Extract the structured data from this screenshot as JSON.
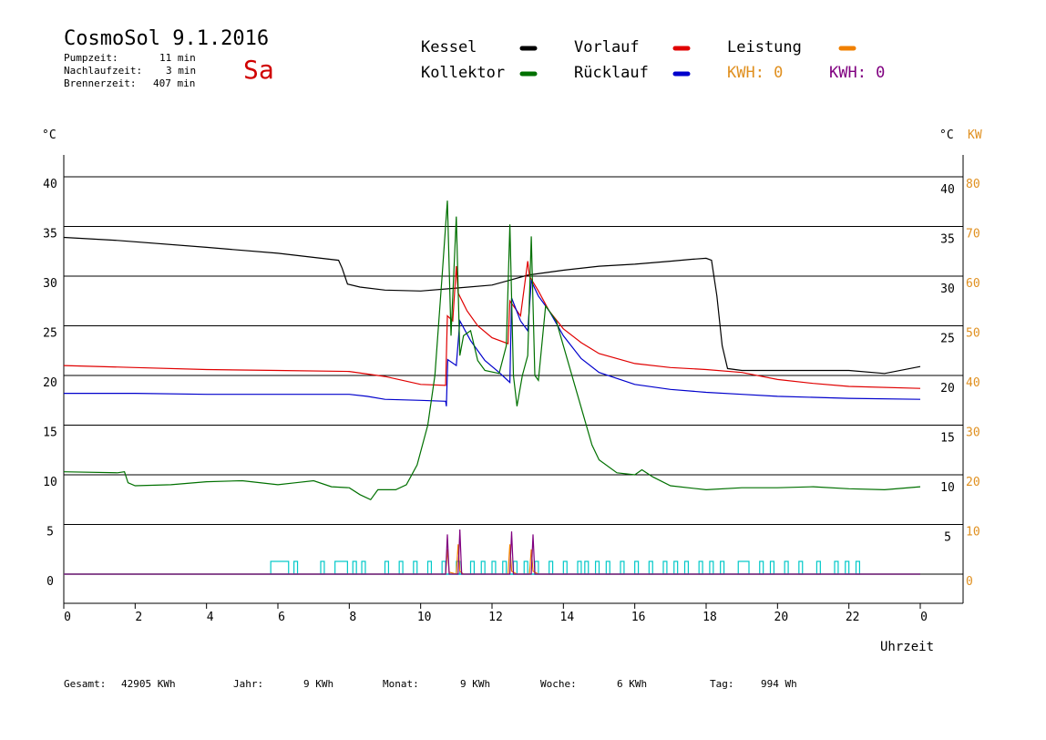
{
  "header": {
    "title": "CosmoSol 9.1.2016",
    "day": "Sa",
    "info": [
      {
        "label": "Pumpzeit:",
        "value": "11 min"
      },
      {
        "label": "Nachlaufzeit:",
        "value": "3 min"
      },
      {
        "label": "Brennerzeit:",
        "value": "407 min"
      }
    ]
  },
  "legend": {
    "kessel": "Kessel",
    "vorlauf": "Vorlauf",
    "leistung": "Leistung",
    "kollektor": "Kollektor",
    "ruecklauf": "Rücklauf",
    "kwh1": "KWH: 0",
    "kwh2": "KWH: 0"
  },
  "footer": {
    "gesamt_label": "Gesamt:",
    "gesamt_value": "42905 KWh",
    "jahr_label": "Jahr:",
    "jahr_value": "9 KWh",
    "monat_label": "Monat:",
    "monat_value": "9 KWh",
    "woche_label": "Woche:",
    "woche_value": "6 KWh",
    "tag_label": "Tag:",
    "tag_value": "994 Wh"
  },
  "colors": {
    "kessel": "#000000",
    "vorlauf": "#e00000",
    "ruecklauf": "#0000cc",
    "kollektor": "#007000",
    "leistung": "#f08000",
    "kwh2": "#800080",
    "pump": "#00c8c8",
    "axis_right_kw": "#e09020"
  },
  "chart_data": {
    "type": "line",
    "xlabel": "Uhrzeit",
    "y_unit_left": "°C",
    "y_unit_right": "°C",
    "y2_unit": "KW",
    "x_ticks": [
      "0",
      "2",
      "4",
      "6",
      "8",
      "10",
      "12",
      "14",
      "16",
      "18",
      "20",
      "22",
      "0"
    ],
    "y_ticks_left": [
      "0",
      "5",
      "10",
      "15",
      "20",
      "25",
      "30",
      "35",
      "40"
    ],
    "y_ticks_right": [
      "5",
      "10",
      "15",
      "20",
      "25",
      "30",
      "35",
      "40"
    ],
    "y2_ticks": [
      "0",
      "10",
      "20",
      "30",
      "40",
      "50",
      "60",
      "70",
      "80"
    ],
    "xlim": [
      0,
      24
    ],
    "ylim": [
      -2,
      42
    ],
    "series": [
      {
        "name": "Kessel",
        "key": "kessel",
        "points": [
          [
            0,
            33.9
          ],
          [
            1.5,
            33.6
          ],
          [
            4,
            32.9
          ],
          [
            6,
            32.3
          ],
          [
            7.7,
            31.6
          ],
          [
            7.8,
            30.8
          ],
          [
            7.95,
            29.2
          ],
          [
            8.3,
            28.9
          ],
          [
            9,
            28.6
          ],
          [
            10,
            28.5
          ],
          [
            11,
            28.8
          ],
          [
            12,
            29.1
          ],
          [
            12.5,
            29.6
          ],
          [
            13,
            30.1
          ],
          [
            14,
            30.6
          ],
          [
            15,
            31
          ],
          [
            16,
            31.2
          ],
          [
            17,
            31.5
          ],
          [
            17.6,
            31.7
          ],
          [
            18,
            31.8
          ],
          [
            18.15,
            31.6
          ],
          [
            18.3,
            28
          ],
          [
            18.45,
            23
          ],
          [
            18.6,
            20.7
          ],
          [
            19,
            20.5
          ],
          [
            22,
            20.5
          ],
          [
            23,
            20.2
          ],
          [
            24,
            20.9
          ]
        ]
      },
      {
        "name": "Vorlauf",
        "key": "vorlauf",
        "points": [
          [
            0,
            21
          ],
          [
            2,
            20.8
          ],
          [
            4,
            20.6
          ],
          [
            6,
            20.5
          ],
          [
            8,
            20.4
          ],
          [
            9,
            19.9
          ],
          [
            10,
            19.1
          ],
          [
            10.7,
            19
          ],
          [
            10.75,
            26
          ],
          [
            10.9,
            25.5
          ],
          [
            11,
            31
          ],
          [
            11.05,
            28.3
          ],
          [
            11.3,
            26.5
          ],
          [
            11.6,
            25
          ],
          [
            12,
            23.8
          ],
          [
            12.45,
            23.2
          ],
          [
            12.5,
            27.5
          ],
          [
            12.6,
            27
          ],
          [
            12.8,
            26
          ],
          [
            13,
            31.5
          ],
          [
            13.05,
            30
          ],
          [
            13.3,
            28.5
          ],
          [
            13.6,
            26.5
          ],
          [
            14,
            24.7
          ],
          [
            14.5,
            23.3
          ],
          [
            15,
            22.2
          ],
          [
            16,
            21.2
          ],
          [
            17,
            20.8
          ],
          [
            18,
            20.6
          ],
          [
            19,
            20.3
          ],
          [
            20,
            19.6
          ],
          [
            21,
            19.2
          ],
          [
            22,
            18.9
          ],
          [
            24,
            18.7
          ]
        ]
      },
      {
        "name": "Rücklauf",
        "key": "ruecklauf",
        "points": [
          [
            0,
            18.2
          ],
          [
            2,
            18.2
          ],
          [
            4,
            18.1
          ],
          [
            6,
            18.1
          ],
          [
            8,
            18.1
          ],
          [
            8.5,
            17.9
          ],
          [
            9,
            17.6
          ],
          [
            10,
            17.5
          ],
          [
            10.7,
            17.4
          ],
          [
            10.72,
            16.9
          ],
          [
            10.76,
            21.6
          ],
          [
            11,
            21
          ],
          [
            11.1,
            25.5
          ],
          [
            11.4,
            23.5
          ],
          [
            11.8,
            21.5
          ],
          [
            12.2,
            20.3
          ],
          [
            12.5,
            19.3
          ],
          [
            12.55,
            27.8
          ],
          [
            12.8,
            25.5
          ],
          [
            13,
            24.5
          ],
          [
            13.1,
            29.5
          ],
          [
            13.3,
            28
          ],
          [
            13.6,
            26.5
          ],
          [
            14,
            24
          ],
          [
            14.5,
            21.7
          ],
          [
            15,
            20.3
          ],
          [
            16,
            19.1
          ],
          [
            17,
            18.6
          ],
          [
            18,
            18.3
          ],
          [
            19,
            18.1
          ],
          [
            20,
            17.9
          ],
          [
            22,
            17.7
          ],
          [
            24,
            17.6
          ]
        ]
      },
      {
        "name": "Kollektor",
        "key": "kollektor",
        "points": [
          [
            0,
            10.3
          ],
          [
            1.5,
            10.2
          ],
          [
            1.7,
            10.3
          ],
          [
            1.8,
            9.2
          ],
          [
            2,
            8.9
          ],
          [
            3,
            9
          ],
          [
            4,
            9.3
          ],
          [
            5,
            9.4
          ],
          [
            6,
            9
          ],
          [
            6.5,
            9.2
          ],
          [
            7,
            9.4
          ],
          [
            7.5,
            8.8
          ],
          [
            8,
            8.7
          ],
          [
            8.3,
            8
          ],
          [
            8.6,
            7.5
          ],
          [
            8.8,
            8.5
          ],
          [
            9.3,
            8.5
          ],
          [
            9.6,
            9
          ],
          [
            9.9,
            11
          ],
          [
            10.2,
            15
          ],
          [
            10.4,
            20
          ],
          [
            10.6,
            30
          ],
          [
            10.75,
            37.6
          ],
          [
            10.85,
            24
          ],
          [
            11,
            36
          ],
          [
            11.1,
            22
          ],
          [
            11.2,
            24
          ],
          [
            11.4,
            24.5
          ],
          [
            11.6,
            21.5
          ],
          [
            11.8,
            20.5
          ],
          [
            12.2,
            20.2
          ],
          [
            12.4,
            23
          ],
          [
            12.5,
            35.2
          ],
          [
            12.6,
            20
          ],
          [
            12.7,
            16.9
          ],
          [
            12.85,
            20
          ],
          [
            13,
            22
          ],
          [
            13.1,
            34
          ],
          [
            13.2,
            20
          ],
          [
            13.3,
            19.5
          ],
          [
            13.5,
            27
          ],
          [
            13.8,
            25.5
          ],
          [
            14,
            23
          ],
          [
            14.4,
            18
          ],
          [
            14.8,
            13
          ],
          [
            15,
            11.5
          ],
          [
            15.5,
            10.2
          ],
          [
            16,
            10
          ],
          [
            16.2,
            10.5
          ],
          [
            16.5,
            9.8
          ],
          [
            17,
            8.9
          ],
          [
            18,
            8.5
          ],
          [
            19,
            8.7
          ],
          [
            20,
            8.7
          ],
          [
            21,
            8.8
          ],
          [
            22,
            8.6
          ],
          [
            23,
            8.5
          ],
          [
            24,
            8.8
          ]
        ]
      },
      {
        "name": "Leistung",
        "key": "leistung",
        "points": [
          [
            0,
            0
          ],
          [
            10.7,
            0
          ],
          [
            10.75,
            2.5
          ],
          [
            10.8,
            0.2
          ],
          [
            11,
            0
          ],
          [
            11.05,
            3
          ],
          [
            11.1,
            0.3
          ],
          [
            11.2,
            0
          ],
          [
            12.45,
            0
          ],
          [
            12.5,
            3
          ],
          [
            12.55,
            0.3
          ],
          [
            12.7,
            0
          ],
          [
            13.05,
            0
          ],
          [
            13.1,
            2.5
          ],
          [
            13.15,
            0.3
          ],
          [
            13.3,
            0
          ],
          [
            24,
            0
          ]
        ]
      },
      {
        "name": "KWH",
        "key": "kwh2",
        "points": [
          [
            0,
            0
          ],
          [
            10.7,
            0
          ],
          [
            10.75,
            4
          ],
          [
            10.8,
            0
          ],
          [
            11.05,
            0
          ],
          [
            11.1,
            4.5
          ],
          [
            11.15,
            0
          ],
          [
            12.5,
            0
          ],
          [
            12.55,
            4.3
          ],
          [
            12.6,
            0
          ],
          [
            13.1,
            0
          ],
          [
            13.15,
            4
          ],
          [
            13.2,
            0
          ],
          [
            24,
            0
          ]
        ]
      }
    ],
    "pump_blocks": [
      [
        5.8,
        6.3
      ],
      [
        6.45,
        6.55
      ],
      [
        7.2,
        7.3
      ],
      [
        7.6,
        7.95
      ],
      [
        8.1,
        8.2
      ],
      [
        8.35,
        8.45
      ],
      [
        9.0,
        9.1
      ],
      [
        9.4,
        9.5
      ],
      [
        9.8,
        9.9
      ],
      [
        10.2,
        10.3
      ],
      [
        10.6,
        10.7
      ],
      [
        11.0,
        11.1
      ],
      [
        11.4,
        11.5
      ],
      [
        11.7,
        11.8
      ],
      [
        12.0,
        12.1
      ],
      [
        12.3,
        12.4
      ],
      [
        12.6,
        12.7
      ],
      [
        12.9,
        13.0
      ],
      [
        13.2,
        13.3
      ],
      [
        13.6,
        13.7
      ],
      [
        14.0,
        14.1
      ],
      [
        14.4,
        14.5
      ],
      [
        14.6,
        14.7
      ],
      [
        14.9,
        15.0
      ],
      [
        15.2,
        15.3
      ],
      [
        15.6,
        15.7
      ],
      [
        16.0,
        16.1
      ],
      [
        16.4,
        16.5
      ],
      [
        16.8,
        16.9
      ],
      [
        17.1,
        17.2
      ],
      [
        17.4,
        17.5
      ],
      [
        17.8,
        17.9
      ],
      [
        18.1,
        18.2
      ],
      [
        18.4,
        18.5
      ],
      [
        18.9,
        19.2
      ],
      [
        19.5,
        19.6
      ],
      [
        19.8,
        19.9
      ],
      [
        20.2,
        20.3
      ],
      [
        20.6,
        20.7
      ],
      [
        21.1,
        21.2
      ],
      [
        21.6,
        21.7
      ],
      [
        21.9,
        22.0
      ],
      [
        22.2,
        22.3
      ]
    ]
  }
}
